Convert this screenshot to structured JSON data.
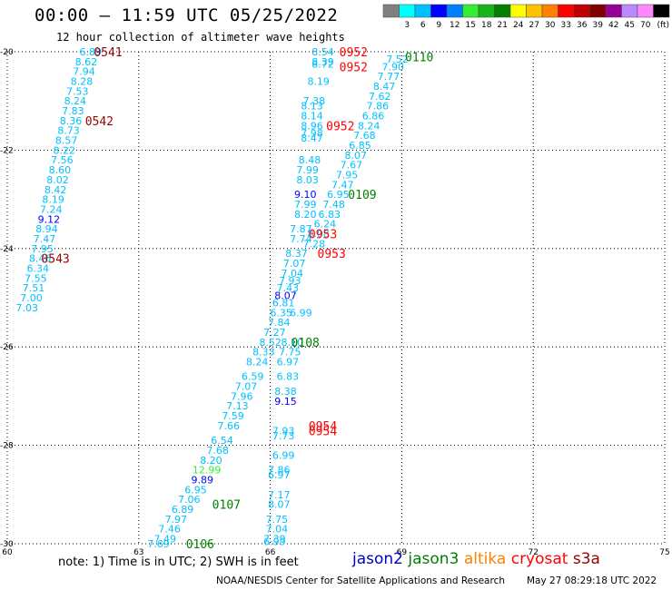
{
  "header": {
    "title": "00:00 – 11:59 UTC 05/25/2022",
    "subtitle": "12 hour collection of altimeter wave heights"
  },
  "scale": {
    "colors": [
      "#808080",
      "#00ffff",
      "#00c0ff",
      "#0000ff",
      "#0080ff",
      "#33ee33",
      "#19b219",
      "#008000",
      "#ffff00",
      "#ffc000",
      "#ff8000",
      "#ff0000",
      "#c00000",
      "#800000",
      "#990099",
      "#bb88ff",
      "#ff88ff",
      "#000000"
    ],
    "labels": [
      "3",
      "6",
      "9",
      "12",
      "15",
      "18",
      "21",
      "24",
      "27",
      "30",
      "33",
      "36",
      "39",
      "42",
      "45",
      "70"
    ],
    "unit": "(ft)"
  },
  "footer": {
    "note": "note: 1) Time is in UTC; 2) SWH is in feet",
    "satellites": [
      {
        "name": "jason2",
        "color": "#0000cc"
      },
      {
        "name": "jason3",
        "color": "#008000"
      },
      {
        "name": "altika",
        "color": "#ff8000"
      },
      {
        "name": "cryosat",
        "color": "#ff0000"
      },
      {
        "name": "s3a",
        "color": "#990000"
      }
    ],
    "credit": "NOAA/NESDIS Center for Satellite Applications and Research",
    "timestamp": "May 27 08:29:18 UTC 2022"
  },
  "chart_data": {
    "type": "scatter",
    "title": "00:00 – 11:59 UTC 05/25/2022",
    "subtitle": "12 hour collection of altimeter wave heights",
    "xlim": [
      60,
      75
    ],
    "ylim": [
      -30,
      -20
    ],
    "xticks": [
      60,
      63,
      66,
      69,
      72,
      75
    ],
    "yticks": [
      -20,
      -22,
      -24,
      -26,
      -28,
      -30
    ],
    "grid": true,
    "series": [
      {
        "name": "track-0541",
        "points": [
          [
            61.9,
            -20.0,
            "6.89",
            "#00c0ff"
          ],
          [
            61.8,
            -20.2,
            "8.62",
            "#00c0ff"
          ],
          [
            61.75,
            -20.4,
            "7.94",
            "#00c0ff"
          ],
          [
            61.7,
            -20.6,
            "8.28",
            "#00c0ff"
          ],
          [
            61.6,
            -20.8,
            "7.53",
            "#00c0ff"
          ],
          [
            61.55,
            -21.0,
            "8.24",
            "#00c0ff"
          ],
          [
            61.5,
            -21.2,
            "7.83",
            "#00c0ff"
          ],
          [
            61.45,
            -21.4,
            "8.36",
            "#00c0ff"
          ],
          [
            61.4,
            -21.6,
            "8.73",
            "#00c0ff"
          ],
          [
            61.35,
            -21.8,
            "8.57",
            "#00c0ff"
          ],
          [
            61.3,
            -22.0,
            "8.22",
            "#00c0ff"
          ],
          [
            61.25,
            -22.2,
            "7.56",
            "#00c0ff"
          ],
          [
            61.2,
            -22.4,
            "8.60",
            "#00c0ff"
          ],
          [
            61.15,
            -22.6,
            "8.02",
            "#00c0ff"
          ],
          [
            61.1,
            -22.8,
            "8.42",
            "#00c0ff"
          ],
          [
            61.05,
            -23.0,
            "8.19",
            "#00c0ff"
          ],
          [
            61.0,
            -23.2,
            "7.24",
            "#00c0ff"
          ],
          [
            60.95,
            -23.4,
            "9.12",
            "#0000ff"
          ],
          [
            60.9,
            -23.6,
            "8.94",
            "#00c0ff"
          ],
          [
            60.85,
            -23.8,
            "7.47",
            "#00c0ff"
          ],
          [
            60.8,
            -24.0,
            "7.95",
            "#00c0ff"
          ],
          [
            60.75,
            -24.2,
            "8.46",
            "#00c0ff"
          ],
          [
            60.7,
            -24.4,
            "6.34",
            "#00c0ff"
          ],
          [
            60.65,
            -24.6,
            "7.55",
            "#00c0ff"
          ],
          [
            60.6,
            -24.8,
            "7.51",
            "#00c0ff"
          ],
          [
            60.55,
            -25.0,
            "7.00",
            "#00c0ff"
          ],
          [
            60.45,
            -25.2,
            "7.03",
            "#00c0ff"
          ]
        ]
      },
      {
        "name": "track-0952-upper",
        "points": [
          [
            67.2,
            -20.0,
            "8.54",
            "#00c0ff"
          ],
          [
            67.2,
            -20.2,
            "8.39",
            "#00c0ff"
          ],
          [
            67.2,
            -20.25,
            "8.72",
            "#00c0ff"
          ],
          [
            67.1,
            -20.6,
            "8.19",
            "#00c0ff"
          ],
          [
            67.0,
            -21.0,
            "7.38",
            "#00c0ff"
          ],
          [
            66.95,
            -21.1,
            "8.13",
            "#00c0ff"
          ],
          [
            66.95,
            -21.3,
            "8.14",
            "#00c0ff"
          ],
          [
            66.95,
            -21.5,
            "8.96",
            "#00c0ff"
          ],
          [
            66.95,
            -21.65,
            "7.98",
            "#00c0ff"
          ],
          [
            66.95,
            -21.75,
            "8.47",
            "#00c0ff"
          ],
          [
            66.9,
            -22.2,
            "8.48",
            "#00c0ff"
          ],
          [
            66.85,
            -22.4,
            "7.99",
            "#00c0ff"
          ],
          [
            66.85,
            -22.6,
            "8.03",
            "#00c0ff"
          ],
          [
            66.8,
            -22.9,
            "9.10",
            "#0000ff"
          ],
          [
            66.8,
            -23.1,
            "7.99",
            "#00c0ff"
          ],
          [
            66.8,
            -23.3,
            "8.20",
            "#00c0ff"
          ],
          [
            66.7,
            -23.6,
            "7.87",
            "#00c0ff"
          ],
          [
            66.7,
            -23.8,
            "7.74",
            "#00c0ff"
          ],
          [
            66.6,
            -24.1,
            "8.37",
            "#00c0ff"
          ],
          [
            66.55,
            -24.3,
            "7.07",
            "#00c0ff"
          ],
          [
            66.5,
            -24.5,
            "7.04",
            "#00c0ff"
          ],
          [
            66.45,
            -24.65,
            "7.93",
            "#00c0ff"
          ],
          [
            66.4,
            -24.8,
            "7.43",
            "#00c0ff"
          ],
          [
            66.35,
            -24.95,
            "8.07",
            "#0000ff"
          ],
          [
            66.3,
            -25.1,
            "6.81",
            "#00c0ff"
          ],
          [
            66.25,
            -25.3,
            "6.35",
            "#00c0ff"
          ],
          [
            66.2,
            -25.5,
            "7.84",
            "#00c0ff"
          ],
          [
            66.1,
            -25.7,
            "7.27",
            "#00c0ff"
          ],
          [
            66.0,
            -25.9,
            "8.52",
            "#00c0ff"
          ],
          [
            65.85,
            -26.1,
            "8.33",
            "#00c0ff"
          ],
          [
            65.7,
            -26.3,
            "8.24",
            "#00c0ff"
          ],
          [
            65.6,
            -26.6,
            "6.59",
            "#00c0ff"
          ],
          [
            65.45,
            -26.8,
            "7.07",
            "#00c0ff"
          ],
          [
            65.35,
            -27.0,
            "7.96",
            "#00c0ff"
          ],
          [
            65.25,
            -27.2,
            "7.13",
            "#00c0ff"
          ],
          [
            65.15,
            -27.4,
            "7.59",
            "#00c0ff"
          ],
          [
            65.05,
            -27.6,
            "7.66",
            "#00c0ff"
          ],
          [
            64.9,
            -27.9,
            "6.54",
            "#00c0ff"
          ],
          [
            64.8,
            -28.1,
            "7.68",
            "#00c0ff"
          ],
          [
            64.65,
            -28.3,
            "8.20",
            "#00c0ff"
          ],
          [
            64.55,
            -28.5,
            "12.99",
            "#33ee33"
          ],
          [
            64.45,
            -28.7,
            "9.89",
            "#0000ff"
          ],
          [
            64.3,
            -28.9,
            "6.95",
            "#00c0ff"
          ],
          [
            64.15,
            -29.1,
            "7.06",
            "#00c0ff"
          ],
          [
            64.0,
            -29.3,
            "6.89",
            "#00c0ff"
          ],
          [
            63.85,
            -29.5,
            "7.97",
            "#00c0ff"
          ],
          [
            63.7,
            -29.7,
            "7.46",
            "#00c0ff"
          ],
          [
            63.6,
            -29.9,
            "7.49",
            "#00c0ff"
          ],
          [
            63.45,
            -30.0,
            "7.69",
            "#00c0ff"
          ]
        ]
      },
      {
        "name": "track-0110",
        "points": [
          [
            68.9,
            -20.15,
            "7.52",
            "#00c0ff"
          ],
          [
            68.8,
            -20.3,
            "7.90",
            "#00c0ff"
          ],
          [
            68.7,
            -20.5,
            "7.77",
            "#00c0ff"
          ],
          [
            68.6,
            -20.7,
            "8.47",
            "#00c0ff"
          ],
          [
            68.5,
            -20.9,
            "7.62",
            "#00c0ff"
          ],
          [
            68.45,
            -21.1,
            "7.86",
            "#00c0ff"
          ],
          [
            68.35,
            -21.3,
            "6.86",
            "#00c0ff"
          ],
          [
            68.25,
            -21.5,
            "8.24",
            "#00c0ff"
          ],
          [
            68.15,
            -21.7,
            "7.68",
            "#00c0ff"
          ],
          [
            68.05,
            -21.9,
            "6.85",
            "#00c0ff"
          ],
          [
            67.95,
            -22.1,
            "8.07",
            "#00c0ff"
          ],
          [
            67.85,
            -22.3,
            "7.67",
            "#00c0ff"
          ],
          [
            67.75,
            -22.5,
            "7.95",
            "#00c0ff"
          ],
          [
            67.65,
            -22.7,
            "7.47",
            "#00c0ff"
          ],
          [
            67.55,
            -22.9,
            "6.95",
            "#00c0ff"
          ],
          [
            67.45,
            -23.1,
            "7.48",
            "#00c0ff"
          ],
          [
            67.35,
            -23.3,
            "6.83",
            "#00c0ff"
          ],
          [
            67.25,
            -23.5,
            "6.24",
            "#00c0ff"
          ],
          [
            67.1,
            -23.7,
            "8.08",
            "#00c0ff"
          ],
          [
            67.0,
            -23.9,
            "7.28",
            "#00c0ff"
          ],
          [
            66.7,
            -25.3,
            "6.99",
            "#00c0ff"
          ],
          [
            66.5,
            -25.9,
            "8.10",
            "#00c0ff"
          ],
          [
            66.45,
            -26.1,
            "7.75",
            "#00c0ff"
          ],
          [
            66.4,
            -26.3,
            "6.97",
            "#00c0ff"
          ],
          [
            66.4,
            -26.6,
            "6.83",
            "#00c0ff"
          ],
          [
            66.35,
            -26.9,
            "8.38",
            "#00c0ff"
          ],
          [
            66.35,
            -27.1,
            "9.15",
            "#0000ff"
          ]
        ]
      },
      {
        "name": "track-0954",
        "points": [
          [
            66.3,
            -27.7,
            "7.93",
            "#00c0ff"
          ],
          [
            66.3,
            -27.8,
            "7.73",
            "#00c0ff"
          ],
          [
            66.3,
            -28.2,
            "6.99",
            "#00c0ff"
          ],
          [
            66.2,
            -28.5,
            "7.86",
            "#00c0ff"
          ],
          [
            66.2,
            -28.6,
            "6.97",
            "#00c0ff"
          ],
          [
            66.2,
            -29.0,
            "7.17",
            "#00c0ff"
          ],
          [
            66.2,
            -29.2,
            "8.07",
            "#00c0ff"
          ],
          [
            66.15,
            -29.5,
            "7.75",
            "#00c0ff"
          ],
          [
            66.15,
            -29.7,
            "7.04",
            "#00c0ff"
          ],
          [
            66.1,
            -29.9,
            "7.39",
            "#00c0ff"
          ],
          [
            66.1,
            -29.95,
            "6.99",
            "#00c0ff"
          ]
        ]
      }
    ],
    "time_labels": [
      [
        62.3,
        -20.0,
        "0541",
        "#990000"
      ],
      [
        62.1,
        -21.4,
        "0542",
        "#990000"
      ],
      [
        61.1,
        -24.2,
        "0543",
        "#990000"
      ],
      [
        67.9,
        -20.0,
        "0952",
        "#ff0000"
      ],
      [
        67.9,
        -20.3,
        "0952",
        "#ff0000"
      ],
      [
        67.6,
        -21.5,
        "0952",
        "#ff0000"
      ],
      [
        69.4,
        -20.1,
        "0110",
        "#008000"
      ],
      [
        68.1,
        -22.9,
        "0109",
        "#008000"
      ],
      [
        67.2,
        -23.7,
        "0953",
        "#ff0000"
      ],
      [
        67.4,
        -24.1,
        "0953",
        "#ff0000"
      ],
      [
        66.8,
        -25.9,
        "0108",
        "#008000"
      ],
      [
        67.2,
        -27.6,
        "0954",
        "#ff0000"
      ],
      [
        67.2,
        -27.7,
        "0954",
        "#ff0000"
      ],
      [
        65.0,
        -29.2,
        "0107",
        "#008000"
      ],
      [
        64.4,
        -30.0,
        "0106",
        "#008000"
      ]
    ]
  }
}
